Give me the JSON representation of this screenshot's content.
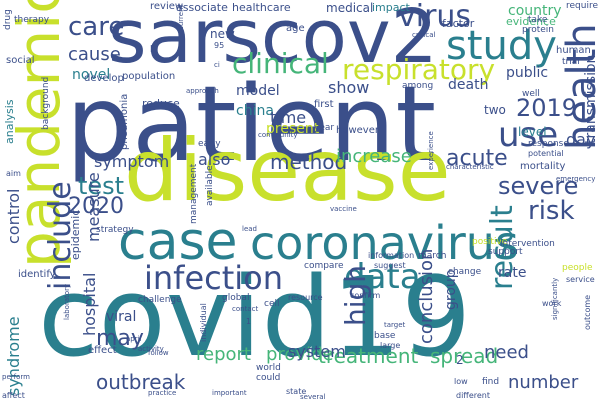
{
  "palette": {
    "background": "#ffffff",
    "navy": "#3b4f8a",
    "teal": "#2a7f8e",
    "green": "#45b579",
    "lime": "#c8e02c",
    "lightgreen": "#8fd14f",
    "purple": "#482374",
    "darkblue": "#2d5a8c",
    "gray": "#6b7a99"
  },
  "words": [
    {
      "text": "covid19",
      "color": "teal"
    },
    {
      "text": "patient",
      "color": "navy"
    },
    {
      "text": "disease",
      "color": "lime"
    },
    {
      "text": "sarscov2",
      "color": "navy"
    },
    {
      "text": "case",
      "color": "teal"
    },
    {
      "text": "coronavirus",
      "color": "teal"
    },
    {
      "text": "pandemic",
      "color": "lime"
    },
    {
      "text": "infection",
      "color": "navy"
    },
    {
      "text": "data",
      "color": "teal"
    },
    {
      "text": "health",
      "color": "navy"
    },
    {
      "text": "study",
      "color": "teal"
    },
    {
      "text": "clinical",
      "color": "green"
    },
    {
      "text": "respiratory",
      "color": "lime"
    },
    {
      "text": "virus",
      "color": "navy"
    },
    {
      "text": "care",
      "color": "navy"
    },
    {
      "text": "use",
      "color": "navy"
    },
    {
      "text": "result",
      "color": "teal"
    },
    {
      "text": "high",
      "color": "navy"
    },
    {
      "text": "include",
      "color": "navy"
    },
    {
      "text": "severe",
      "color": "navy"
    },
    {
      "text": "risk",
      "color": "navy"
    },
    {
      "text": "test",
      "color": "teal"
    },
    {
      "text": "2020",
      "color": "navy"
    },
    {
      "text": "2019",
      "color": "navy"
    },
    {
      "text": "method",
      "color": "navy"
    },
    {
      "text": "increase",
      "color": "green"
    },
    {
      "text": "acute",
      "color": "navy"
    },
    {
      "text": "may",
      "color": "navy"
    },
    {
      "text": "treatment",
      "color": "green"
    },
    {
      "text": "provide",
      "color": "green"
    },
    {
      "text": "report",
      "color": "green"
    },
    {
      "text": "outbreak",
      "color": "navy"
    },
    {
      "text": "system",
      "color": "navy"
    },
    {
      "text": "spread",
      "color": "green"
    },
    {
      "text": "number",
      "color": "navy"
    },
    {
      "text": "conclusion",
      "color": "navy"
    },
    {
      "text": "need",
      "color": "navy"
    },
    {
      "text": "syndrome",
      "color": "teal"
    },
    {
      "text": "hospital",
      "color": "navy"
    },
    {
      "text": "control",
      "color": "navy"
    },
    {
      "text": "measure",
      "color": "navy"
    },
    {
      "text": "symptom",
      "color": "navy"
    },
    {
      "text": "cause",
      "color": "navy"
    },
    {
      "text": "novel",
      "color": "teal"
    },
    {
      "text": "model",
      "color": "navy"
    },
    {
      "text": "china",
      "color": "teal"
    },
    {
      "text": "show",
      "color": "navy"
    },
    {
      "text": "death",
      "color": "navy"
    },
    {
      "text": "public",
      "color": "navy"
    },
    {
      "text": "transmission",
      "color": "navy"
    },
    {
      "text": "time",
      "color": "navy"
    },
    {
      "text": "present",
      "color": "lime"
    },
    {
      "text": "also",
      "color": "navy"
    },
    {
      "text": "day",
      "color": "navy"
    },
    {
      "text": "level",
      "color": "teal"
    },
    {
      "text": "rate",
      "color": "navy"
    },
    {
      "text": "group",
      "color": "navy"
    },
    {
      "text": "country",
      "color": "green"
    },
    {
      "text": "two",
      "color": "navy"
    },
    {
      "text": "viral",
      "color": "navy"
    },
    {
      "text": "medical",
      "color": "navy"
    },
    {
      "text": "new",
      "color": "navy"
    },
    {
      "text": "associate",
      "color": "navy"
    },
    {
      "text": "healthcare",
      "color": "navy"
    },
    {
      "text": "impact",
      "color": "teal"
    },
    {
      "text": "review",
      "color": "navy"
    },
    {
      "text": "factor",
      "color": "navy"
    },
    {
      "text": "evidence",
      "color": "green"
    },
    {
      "text": "protein",
      "color": "navy"
    },
    {
      "text": "human",
      "color": "navy"
    },
    {
      "text": "mortality",
      "color": "navy"
    },
    {
      "text": "epidemic",
      "color": "navy"
    },
    {
      "text": "analysis",
      "color": "teal"
    },
    {
      "text": "first",
      "color": "navy"
    },
    {
      "text": "reduce",
      "color": "navy"
    },
    {
      "text": "pneumonia",
      "color": "navy"
    },
    {
      "text": "population",
      "color": "navy"
    },
    {
      "text": "develop",
      "color": "navy"
    },
    {
      "text": "social",
      "color": "navy"
    },
    {
      "text": "background",
      "color": "navy"
    },
    {
      "text": "age",
      "color": "navy"
    },
    {
      "text": "however",
      "color": "navy"
    },
    {
      "text": "effect",
      "color": "navy"
    },
    {
      "text": "identify",
      "color": "navy"
    },
    {
      "text": "drug",
      "color": "navy"
    },
    {
      "text": "therapy",
      "color": "navy"
    },
    {
      "text": "require",
      "color": "navy"
    },
    {
      "text": "take",
      "color": "navy"
    },
    {
      "text": "well",
      "color": "navy"
    },
    {
      "text": "trial",
      "color": "navy"
    },
    {
      "text": "among",
      "color": "navy"
    },
    {
      "text": "year",
      "color": "navy"
    },
    {
      "text": "strategy",
      "color": "navy"
    },
    {
      "text": "available",
      "color": "navy"
    },
    {
      "text": "management",
      "color": "navy"
    },
    {
      "text": "early",
      "color": "navy"
    },
    {
      "text": "response",
      "color": "navy"
    },
    {
      "text": "emergency",
      "color": "navy"
    },
    {
      "text": "positive",
      "color": "lime"
    },
    {
      "text": "support",
      "color": "navy"
    },
    {
      "text": "intervention",
      "color": "navy"
    },
    {
      "text": "information",
      "color": "navy"
    },
    {
      "text": "march",
      "color": "navy"
    },
    {
      "text": "change",
      "color": "navy"
    },
    {
      "text": "compare",
      "color": "navy"
    },
    {
      "text": "suggest",
      "color": "navy"
    },
    {
      "text": "people",
      "color": "lime"
    },
    {
      "text": "service",
      "color": "navy"
    },
    {
      "text": "global",
      "color": "navy"
    },
    {
      "text": "resource",
      "color": "navy"
    },
    {
      "text": "confirm",
      "color": "navy"
    },
    {
      "text": "challenge",
      "color": "navy"
    },
    {
      "text": "cell",
      "color": "navy"
    },
    {
      "text": "individual",
      "color": "navy"
    },
    {
      "text": "base",
      "color": "navy"
    },
    {
      "text": "large",
      "color": "navy"
    },
    {
      "text": "world",
      "color": "navy"
    },
    {
      "text": "could",
      "color": "navy"
    },
    {
      "text": "find",
      "color": "navy"
    },
    {
      "text": "low",
      "color": "navy"
    },
    {
      "text": "different",
      "color": "navy"
    },
    {
      "text": "state",
      "color": "navy"
    },
    {
      "text": "several",
      "color": "navy"
    },
    {
      "text": "important",
      "color": "navy"
    },
    {
      "text": "practice",
      "color": "navy"
    },
    {
      "text": "activity",
      "color": "navy"
    },
    {
      "text": "perform",
      "color": "navy"
    },
    {
      "text": "affect",
      "color": "navy"
    },
    {
      "text": "follow",
      "color": "navy"
    },
    {
      "text": "april",
      "color": "navy"
    },
    {
      "text": "outcome",
      "color": "navy"
    },
    {
      "text": "work",
      "color": "navy"
    },
    {
      "text": "contact",
      "color": "navy"
    },
    {
      "text": "aim",
      "color": "navy"
    },
    {
      "text": "approach",
      "color": "navy"
    },
    {
      "text": "current",
      "color": "navy"
    },
    {
      "text": "potential",
      "color": "navy"
    },
    {
      "text": "lead",
      "color": "navy"
    },
    {
      "text": "significantly",
      "color": "navy"
    },
    {
      "text": "target",
      "color": "navy"
    },
    {
      "text": "experience",
      "color": "navy"
    },
    {
      "text": "laboratory",
      "color": "navy"
    },
    {
      "text": "characteristic",
      "color": "navy"
    },
    {
      "text": "vaccine",
      "color": "navy"
    },
    {
      "text": "community",
      "color": "navy"
    },
    {
      "text": "critical",
      "color": "navy"
    },
    {
      "text": "p",
      "color": "navy"
    },
    {
      "text": "95",
      "color": "navy"
    },
    {
      "text": "ci",
      "color": "navy"
    },
    {
      "text": "1",
      "color": "navy"
    },
    {
      "text": "2",
      "color": "navy"
    }
  ]
}
